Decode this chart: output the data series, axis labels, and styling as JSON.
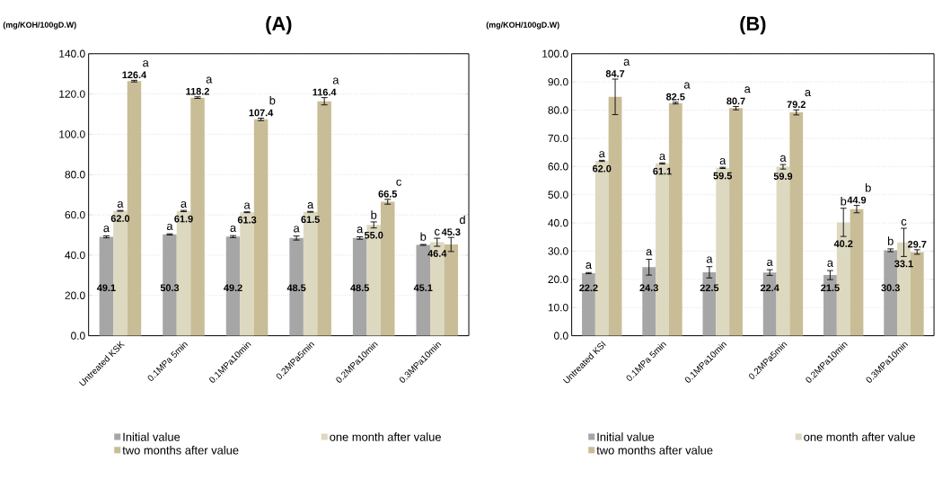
{
  "chart_data": [
    {
      "type": "bar",
      "title": "(A)",
      "ylabel": "(mg/KOH/100gD.W)",
      "categories": [
        "Untreated KSK",
        "0.1MPa 5min",
        "0.1MPa10min",
        "0.2MPa5min",
        "0.2MPa10min",
        "0.3MPa10min"
      ],
      "series": [
        {
          "name": "Initial value",
          "color": "#a6a6a6",
          "values": [
            49.1,
            50.3,
            49.2,
            48.5,
            48.5,
            45.1
          ],
          "errors": [
            0.5,
            0.3,
            0.5,
            1.0,
            0.6,
            0.2
          ],
          "value_labels": [
            "49.1",
            "50.3",
            "49.2",
            "48.5",
            "48.5",
            "45.1"
          ]
        },
        {
          "name": "one month after value",
          "color": "#ddd8c0",
          "values": [
            62.0,
            61.9,
            61.3,
            61.5,
            55.0,
            46.4
          ],
          "errors": [
            0.2,
            0.3,
            0.2,
            0.2,
            1.5,
            2.0
          ],
          "value_labels": [
            "62.0",
            "61.9",
            "61.3",
            "61.5",
            "55.0",
            "46.4"
          ]
        },
        {
          "name": "two months after value",
          "color": "#c8bd96",
          "values": [
            126.4,
            118.2,
            107.4,
            116.4,
            66.5,
            45.3
          ],
          "errors": [
            0.4,
            0.4,
            0.6,
            1.8,
            1.2,
            3.5
          ],
          "value_labels": [
            "126.4",
            "118.2",
            "107.4",
            "116.4",
            "66.5",
            "45.3"
          ]
        }
      ],
      "ylim": [
        0,
        140
      ],
      "yticks": [
        {
          "value": 0,
          "label": "0.0"
        },
        {
          "value": 20,
          "label": "20.0"
        },
        {
          "value": 40,
          "label": "40.0"
        },
        {
          "value": 60,
          "label": "60.0"
        },
        {
          "value": 80,
          "label": "80.0"
        },
        {
          "value": 100,
          "label": "100.0"
        },
        {
          "value": 120,
          "label": "120.0"
        },
        {
          "value": 140,
          "label": "140.0"
        }
      ],
      "grid": "y",
      "legend": "bottom",
      "annotations": [
        "a",
        "a",
        "a",
        "a",
        "a",
        "b",
        "a",
        "a",
        "a",
        "a",
        "b",
        "c",
        "a",
        "a",
        "b",
        "a",
        "c",
        "d"
      ]
    },
    {
      "type": "bar",
      "title": "(B)",
      "ylabel": "(mg/KOH/100gD.W)",
      "categories": [
        "Untreated KSI",
        "0.1MPa 5min",
        "0.1MPa10min",
        "0.2MPa5min",
        "0.2MPa10min",
        "0.3MPa10min"
      ],
      "series": [
        {
          "name": "Initial value",
          "color": "#a6a6a6",
          "values": [
            22.2,
            24.3,
            22.5,
            22.4,
            21.5,
            30.3
          ],
          "errors": [
            0.2,
            2.8,
            2.0,
            1.0,
            1.6,
            0.5
          ],
          "value_labels": [
            "22.2",
            "24.3",
            "22.5",
            "22.4",
            "21.5",
            "30.3"
          ]
        },
        {
          "name": "one month after value",
          "color": "#ddd8c0",
          "values": [
            62.0,
            61.1,
            59.5,
            59.9,
            40.2,
            33.1
          ],
          "errors": [
            0.2,
            0.2,
            0.2,
            0.8,
            5.0,
            5.0
          ],
          "value_labels": [
            "62.0",
            "61.1",
            "59.5",
            "59.9",
            "40.2",
            "33.1"
          ]
        },
        {
          "name": "two months after value",
          "color": "#c8bd96",
          "values": [
            84.7,
            82.5,
            80.7,
            79.2,
            44.9,
            29.7
          ],
          "errors": [
            6.3,
            0.3,
            0.6,
            0.9,
            1.3,
            0.8
          ],
          "value_labels": [
            "84.7",
            "82.5",
            "80.7",
            "79.2",
            "44.9",
            "29.7"
          ]
        }
      ],
      "ylim": [
        0,
        100
      ],
      "yticks": [
        {
          "value": 0,
          "label": "0.0"
        },
        {
          "value": 10,
          "label": "10.0"
        },
        {
          "value": 20,
          "label": "20.0"
        },
        {
          "value": 30,
          "label": "30.0"
        },
        {
          "value": 40,
          "label": "40.0"
        },
        {
          "value": 50,
          "label": "50.0"
        },
        {
          "value": 60,
          "label": "60.0"
        },
        {
          "value": 70,
          "label": "70.0"
        },
        {
          "value": 80,
          "label": "80.0"
        },
        {
          "value": 90,
          "label": "90.0"
        },
        {
          "value": 100,
          "label": "100.0"
        }
      ],
      "grid": "y",
      "legend": "bottom",
      "annotations": [
        "a",
        "a",
        "a",
        "a",
        "a",
        "b",
        "a",
        "a",
        "a",
        "a",
        "b",
        "c",
        "a",
        "a",
        "a",
        "a",
        "b"
      ]
    }
  ]
}
